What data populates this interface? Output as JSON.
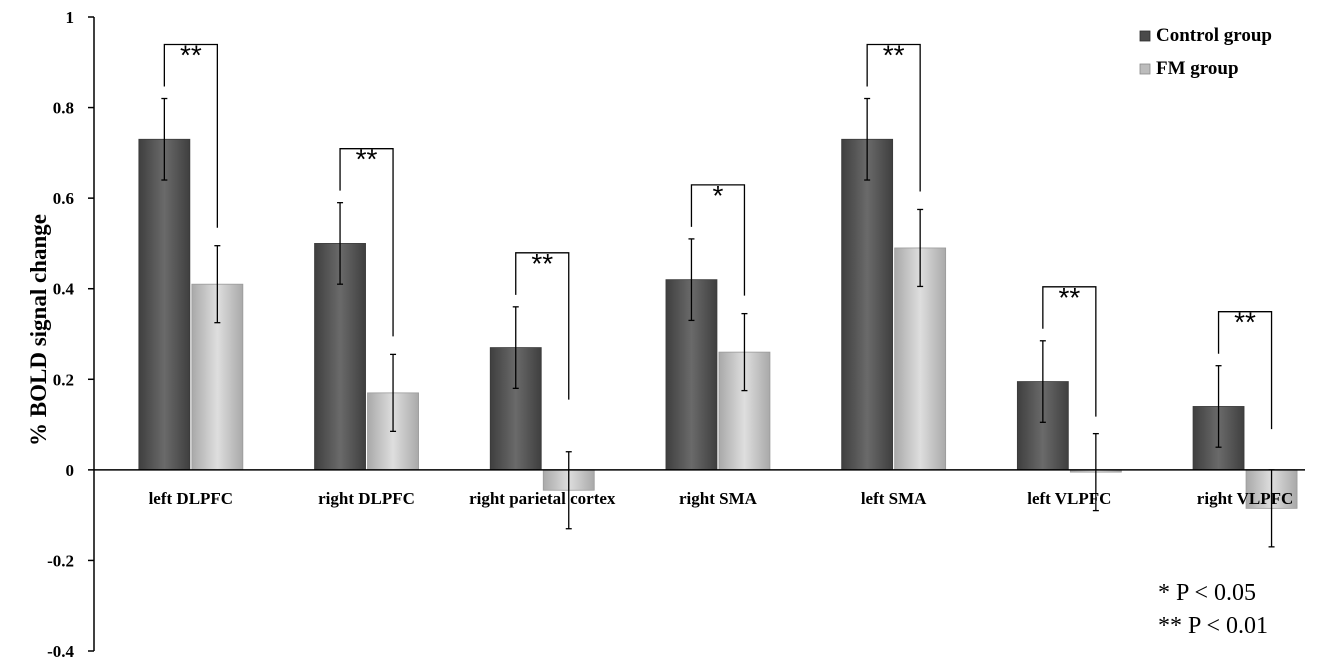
{
  "chart_data": {
    "type": "bar",
    "xlabel": "",
    "ylabel": "% BOLD signal change",
    "ylim": [
      -0.4,
      1
    ],
    "yticks": [
      -0.4,
      -0.2,
      0,
      0.2,
      0.4,
      0.6,
      0.8,
      1
    ],
    "categories": [
      "left DLPFC",
      "right DLPFC",
      "right parietal cortex",
      "right SMA",
      "left SMA",
      "left VLPFC",
      "right VLPFC"
    ],
    "series": [
      {
        "name": "Control group",
        "color": "#595959",
        "values": [
          0.73,
          0.5,
          0.27,
          0.42,
          0.73,
          0.195,
          0.14
        ],
        "errors": [
          0.09,
          0.09,
          0.09,
          0.09,
          0.09,
          0.09,
          0.09
        ]
      },
      {
        "name": "FM group",
        "color": "#c8c8c8",
        "values": [
          0.41,
          0.17,
          -0.045,
          0.26,
          0.49,
          -0.005,
          -0.085
        ],
        "errors": [
          0.085,
          0.085,
          0.085,
          0.085,
          0.085,
          0.085,
          0.085
        ]
      }
    ],
    "significance": [
      "**",
      "**",
      "**",
      "*",
      "**",
      "**",
      "**"
    ],
    "legend_position": "top-right",
    "notes": [
      "*  P < 0.05",
      "** P < 0.01"
    ]
  }
}
